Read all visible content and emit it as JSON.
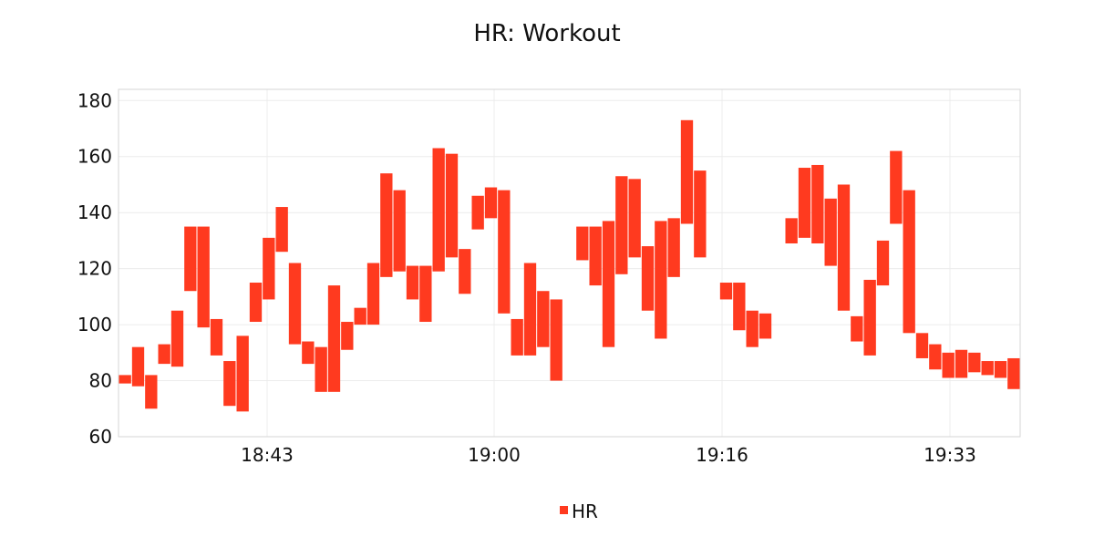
{
  "colors": {
    "series": "#ff3a1f",
    "grid": "#ececec",
    "frame": "#d6d6d6",
    "text": "#111111"
  },
  "chart_data": {
    "type": "bar",
    "subtype": "floating-range",
    "title": "HR: Workout",
    "xlabel": "",
    "ylabel": "",
    "x_ticks": [
      "18:43",
      "19:00",
      "19:16",
      "19:33"
    ],
    "y_ticks": [
      60,
      80,
      100,
      120,
      140,
      160,
      180
    ],
    "ylim": [
      60,
      184
    ],
    "grid": true,
    "legend": {
      "position": "bottom-center"
    },
    "series": [
      {
        "name": "HR",
        "color": "#ff3a1f",
        "ranges": [
          [
            79,
            82
          ],
          [
            78,
            92
          ],
          [
            70,
            82
          ],
          [
            86,
            93
          ],
          [
            85,
            105
          ],
          [
            112,
            135
          ],
          [
            99,
            135
          ],
          [
            89,
            102
          ],
          [
            71,
            87
          ],
          [
            69,
            96
          ],
          [
            101,
            115
          ],
          [
            109,
            131
          ],
          [
            126,
            142
          ],
          [
            93,
            122
          ],
          [
            86,
            94
          ],
          [
            76,
            92
          ],
          [
            76,
            114
          ],
          [
            91,
            101
          ],
          [
            100,
            106
          ],
          [
            100,
            122
          ],
          [
            117,
            154
          ],
          [
            119,
            148
          ],
          [
            109,
            121
          ],
          [
            101,
            121
          ],
          [
            119,
            163
          ],
          [
            124,
            161
          ],
          [
            111,
            127
          ],
          [
            134,
            146
          ],
          [
            138,
            149
          ],
          [
            104,
            148
          ],
          [
            89,
            102
          ],
          [
            89,
            122
          ],
          [
            92,
            112
          ],
          [
            80,
            109
          ],
          [
            null,
            null
          ],
          [
            123,
            135
          ],
          [
            114,
            135
          ],
          [
            92,
            137
          ],
          [
            118,
            153
          ],
          [
            124,
            152
          ],
          [
            105,
            128
          ],
          [
            95,
            137
          ],
          [
            117,
            138
          ],
          [
            136,
            173
          ],
          [
            124,
            155
          ],
          [
            null,
            null
          ],
          [
            109,
            115
          ],
          [
            98,
            115
          ],
          [
            92,
            105
          ],
          [
            95,
            104
          ],
          [
            null,
            null
          ],
          [
            129,
            138
          ],
          [
            131,
            156
          ],
          [
            129,
            157
          ],
          [
            121,
            145
          ],
          [
            105,
            150
          ],
          [
            94,
            103
          ],
          [
            89,
            116
          ],
          [
            114,
            130
          ],
          [
            136,
            162
          ],
          [
            97,
            148
          ],
          [
            88,
            97
          ],
          [
            84,
            93
          ],
          [
            81,
            90
          ],
          [
            81,
            91
          ],
          [
            83,
            90
          ],
          [
            82,
            87
          ],
          [
            81,
            87
          ],
          [
            77,
            88
          ]
        ]
      }
    ]
  }
}
